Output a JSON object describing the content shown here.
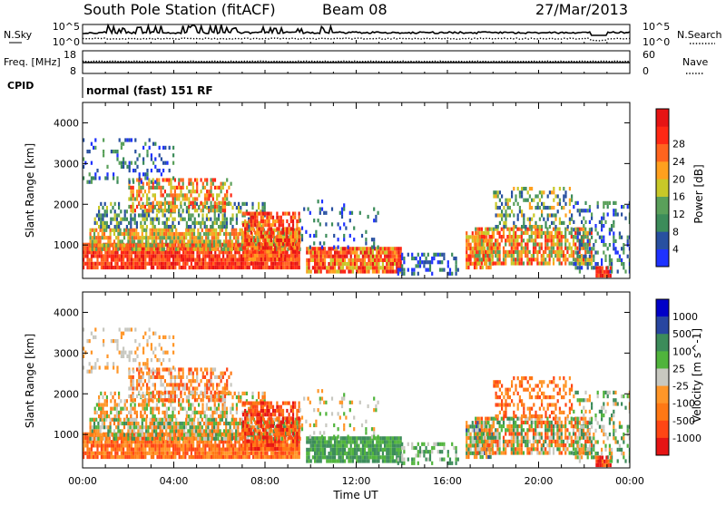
{
  "header": {
    "title": "South Pole Station (fitACF)",
    "beam": "Beam 08",
    "date": "27/Mar/2013"
  },
  "colors": {
    "power_scale": [
      "#1e32ff",
      "#2850a0",
      "#3c8c5a",
      "#5aa05a",
      "#c8c828",
      "#ffa01e",
      "#ff641e",
      "#ff2814",
      "#e61414"
    ],
    "velocity_scale": [
      "#0000c8",
      "#2846a0",
      "#3c8c5a",
      "#50b43c",
      "#c8c8c0",
      "#ff9628",
      "#ff7814",
      "#ff4614",
      "#e61414"
    ]
  },
  "chart_data": [
    {
      "type": "line",
      "name": "noise-panel",
      "left_label": "N.Sky",
      "right_label": "N.Search",
      "left_ticks": [
        "10^5",
        "10^0"
      ],
      "right_ticks": [
        "10^5",
        "10^0"
      ],
      "series": [
        {
          "name": "N.Sky",
          "style": "solid"
        },
        {
          "name": "N.Search",
          "style": "dotted"
        }
      ]
    },
    {
      "type": "line",
      "name": "freq-panel",
      "left_label": "Freq. [MHz]",
      "right_label": "Nave",
      "left_ticks": [
        "18",
        "8"
      ],
      "right_ticks": [
        "60",
        "0"
      ],
      "series": [
        {
          "name": "Freq.",
          "style": "solid"
        },
        {
          "name": "Nave",
          "style": "dotted"
        }
      ]
    },
    {
      "type": "text",
      "name": "cpid-panel",
      "label": "CPID",
      "value": "normal (fast) 151 RF"
    },
    {
      "type": "heatmap",
      "name": "power",
      "ylabel": "Slant Range [km]",
      "yticks": [
        "1000",
        "2000",
        "3000",
        "4000"
      ],
      "ylim": [
        180,
        4500
      ],
      "colorbar_label": "Power [dB]",
      "colorbar_ticks": [
        "4",
        "8",
        "12",
        "16",
        "20",
        "24",
        "28"
      ]
    },
    {
      "type": "heatmap",
      "name": "velocity",
      "ylabel": "Slant Range [km]",
      "yticks": [
        "1000",
        "2000",
        "3000",
        "4000"
      ],
      "ylim": [
        180,
        4500
      ],
      "xlabel": "Time UT",
      "xticks": [
        "00:00",
        "04:00",
        "08:00",
        "12:00",
        "16:00",
        "20:00",
        "00:00"
      ],
      "xlim_hours": [
        0,
        24
      ],
      "colorbar_label": "Velocity [m s^-1]",
      "colorbar_ticks": [
        "1000",
        "500",
        "100",
        "25",
        "-25",
        "-100",
        "-500",
        "-1000"
      ]
    }
  ]
}
